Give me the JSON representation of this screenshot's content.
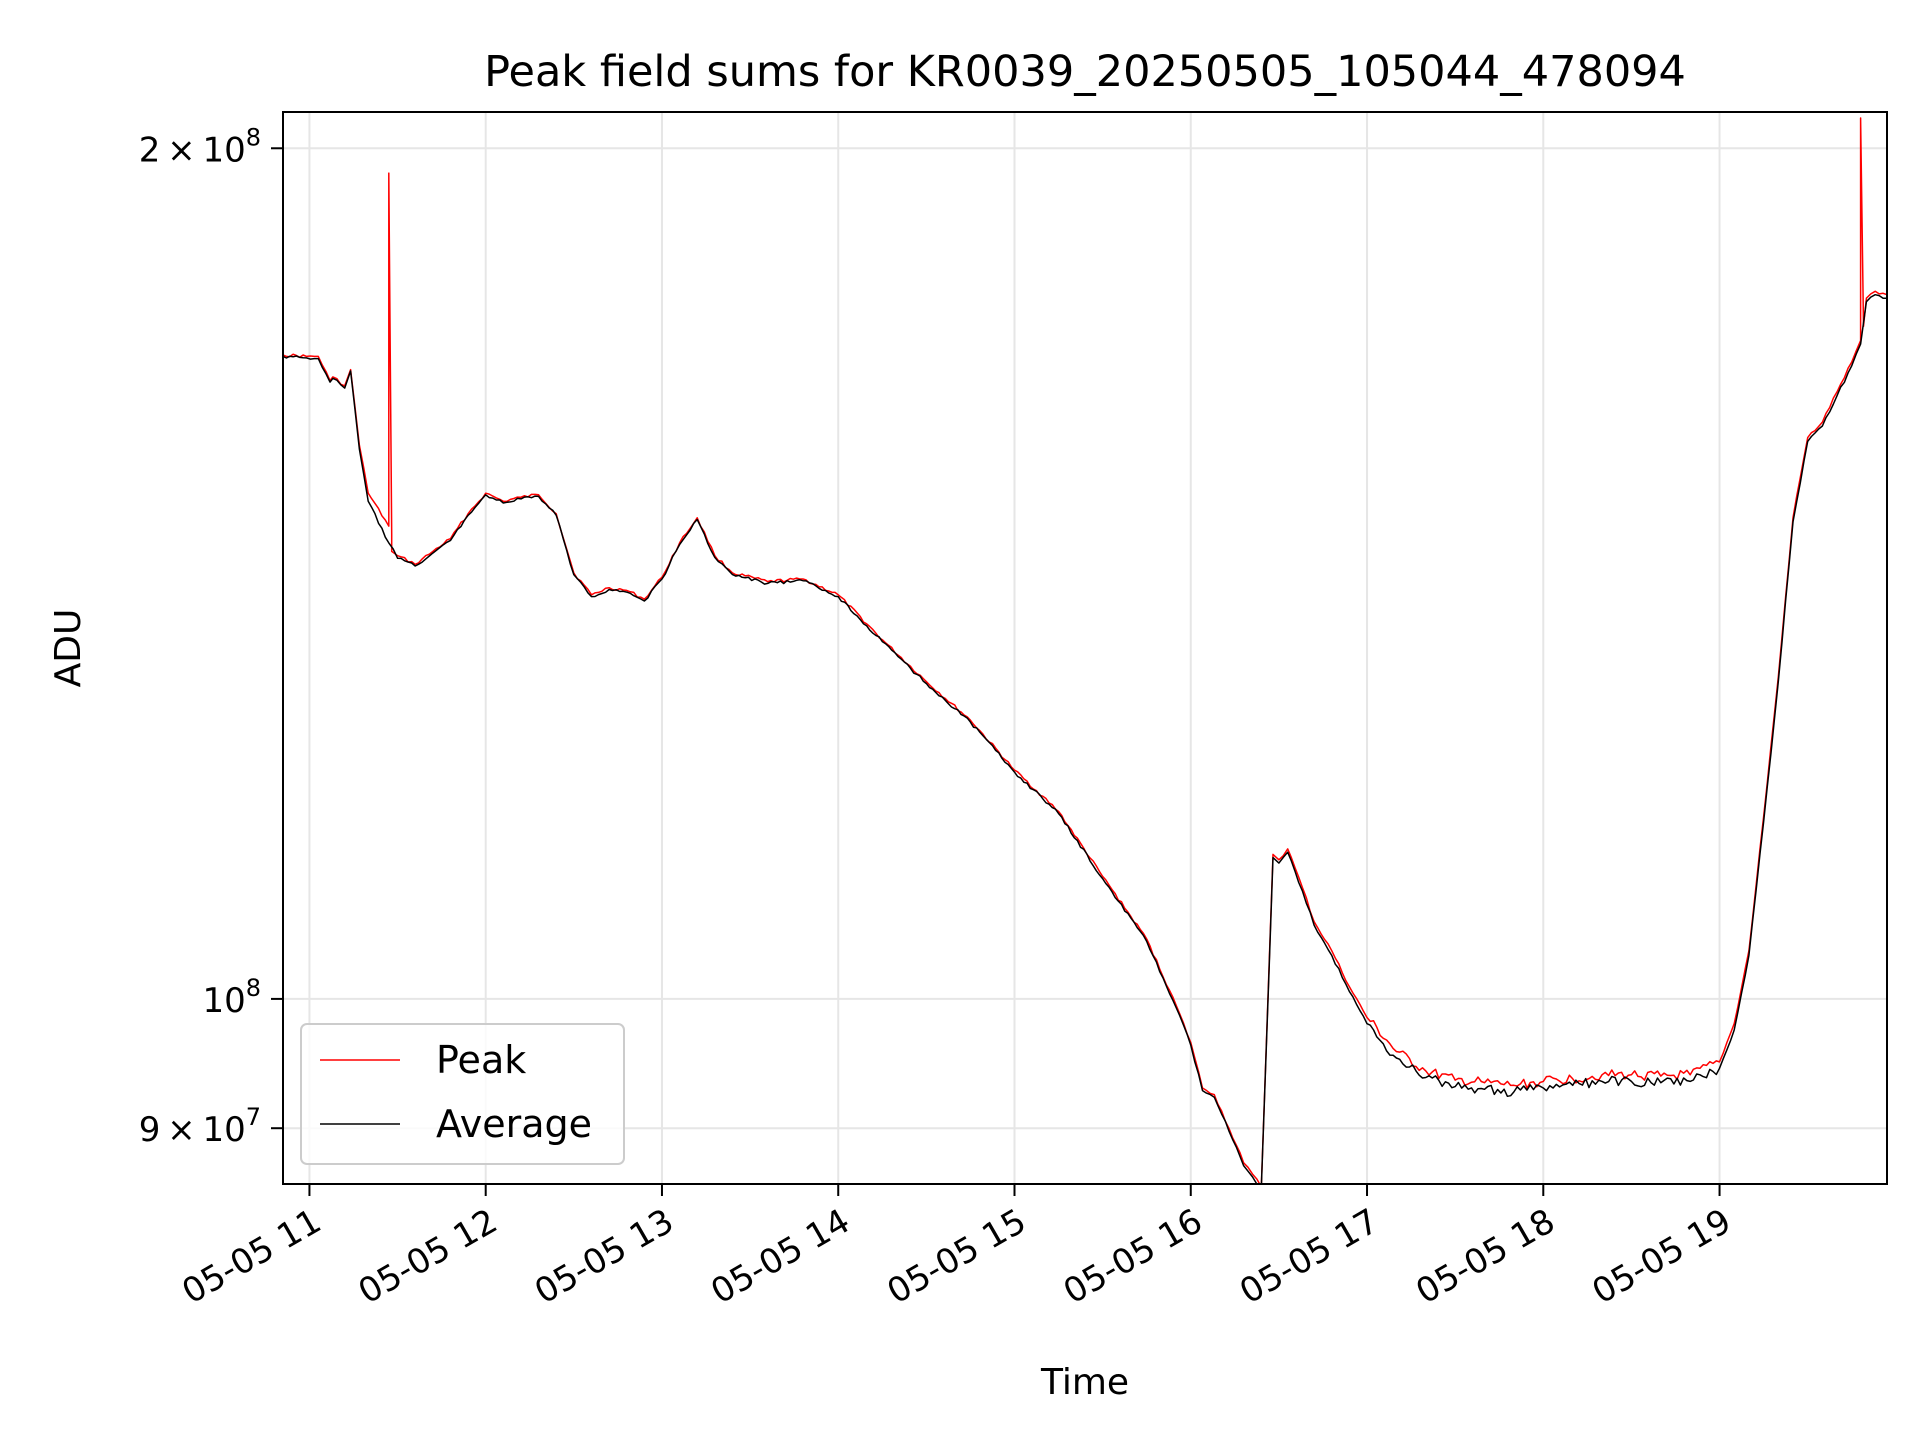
{
  "chart_data": {
    "type": "line",
    "title": "Peak field sums for KR0039_20250505_105044_478094",
    "xlabel": "Time",
    "ylabel": "ADU",
    "yscale": "log",
    "xlim": [
      "2025-05-05 10:51",
      "2025-05-05 19:57"
    ],
    "ylim": [
      86000000,
      206000000
    ],
    "grid": true,
    "legend_position": "lower-left",
    "x_ticks": [
      {
        "value": "2025-05-05 11:00",
        "label": "05-05 11"
      },
      {
        "value": "2025-05-05 12:00",
        "label": "05-05 12"
      },
      {
        "value": "2025-05-05 13:00",
        "label": "05-05 13"
      },
      {
        "value": "2025-05-05 14:00",
        "label": "05-05 14"
      },
      {
        "value": "2025-05-05 15:00",
        "label": "05-05 15"
      },
      {
        "value": "2025-05-05 16:00",
        "label": "05-05 16"
      },
      {
        "value": "2025-05-05 17:00",
        "label": "05-05 17"
      },
      {
        "value": "2025-05-05 18:00",
        "label": "05-05 18"
      },
      {
        "value": "2025-05-05 19:00",
        "label": "05-05 19"
      }
    ],
    "y_ticks": [
      {
        "value": 200000000,
        "mantissa": "2",
        "times": "×",
        "base": "10",
        "exp": "8"
      },
      {
        "value": 100000000,
        "mantissa": "",
        "times": "",
        "base": "10",
        "exp": "8"
      },
      {
        "value": 90000000,
        "mantissa": "9",
        "times": "×",
        "base": "10",
        "exp": "7"
      }
    ],
    "series": [
      {
        "name": "Peak",
        "color": "#ff0000",
        "x": [
          "2025-05-05 10:51",
          "2025-05-05 10:59",
          "2025-05-05 11:03",
          "2025-05-05 11:07",
          "2025-05-05 11:08",
          "2025-05-05 11:12",
          "2025-05-05 11:14",
          "2025-05-05 11:17",
          "2025-05-05 11:20",
          "2025-05-05 11:27",
          "2025-05-05 11:27",
          "2025-05-05 11:28",
          "2025-05-05 11:28",
          "2025-05-05 11:30",
          "2025-05-05 11:36",
          "2025-05-05 11:42",
          "2025-05-05 11:48",
          "2025-05-05 11:54",
          "2025-05-05 12:00",
          "2025-05-05 12:06",
          "2025-05-05 12:12",
          "2025-05-05 12:18",
          "2025-05-05 12:24",
          "2025-05-05 12:30",
          "2025-05-05 12:36",
          "2025-05-05 12:42",
          "2025-05-05 12:48",
          "2025-05-05 12:54",
          "2025-05-05 13:00",
          "2025-05-05 13:06",
          "2025-05-05 13:12",
          "2025-05-05 13:18",
          "2025-05-05 13:24",
          "2025-05-05 13:36",
          "2025-05-05 13:48",
          "2025-05-05 14:00",
          "2025-05-05 14:15",
          "2025-05-05 14:30",
          "2025-05-05 14:45",
          "2025-05-05 15:00",
          "2025-05-05 15:15",
          "2025-05-05 15:30",
          "2025-05-05 15:45",
          "2025-05-05 15:55",
          "2025-05-05 16:00",
          "2025-05-05 16:04",
          "2025-05-05 16:08",
          "2025-05-05 16:13",
          "2025-05-05 16:18",
          "2025-05-05 16:21",
          "2025-05-05 16:24",
          "2025-05-05 16:28",
          "2025-05-05 16:30",
          "2025-05-05 16:33",
          "2025-05-05 16:38",
          "2025-05-05 16:42",
          "2025-05-05 16:48",
          "2025-05-05 16:54",
          "2025-05-05 17:00",
          "2025-05-05 17:10",
          "2025-05-05 17:20",
          "2025-05-05 17:30",
          "2025-05-05 17:40",
          "2025-05-05 17:50",
          "2025-05-05 18:00",
          "2025-05-05 18:10",
          "2025-05-05 18:20",
          "2025-05-05 18:30",
          "2025-05-05 18:40",
          "2025-05-05 18:50",
          "2025-05-05 19:00",
          "2025-05-05 19:05",
          "2025-05-05 19:10",
          "2025-05-05 19:15",
          "2025-05-05 19:20",
          "2025-05-05 19:25",
          "2025-05-05 19:30",
          "2025-05-05 19:35",
          "2025-05-05 19:40",
          "2025-05-05 19:45",
          "2025-05-05 19:48",
          "2025-05-05 19:48",
          "2025-05-05 19:49",
          "2025-05-05 19:50",
          "2025-05-05 19:53",
          "2025-05-05 19:57"
        ],
        "y": [
          169000000,
          168800000,
          168800000,
          165500000,
          166000000,
          164800000,
          167000000,
          157000000,
          151000000,
          147000000,
          196000000,
          146000000,
          144000000,
          143500000,
          142500000,
          144000000,
          145500000,
          148500000,
          151000000,
          150000000,
          150500000,
          150800000,
          148500000,
          141500000,
          139000000,
          139800000,
          139500000,
          138500000,
          141000000,
          145000000,
          148000000,
          143500000,
          141500000,
          140500000,
          140800000,
          139000000,
          134000000,
          129500000,
          125500000,
          120500000,
          116500000,
          110500000,
          105000000,
          99500000,
          96500000,
          93000000,
          92500000,
          90000000,
          87500000,
          86700000,
          85800000,
          112500000,
          112000000,
          113000000,
          109500000,
          106500000,
          104000000,
          101000000,
          98500000,
          95800000,
          94300000,
          93600000,
          93400000,
          93200000,
          93500000,
          93700000,
          94000000,
          94000000,
          93900000,
          94000000,
          95000000,
          98000000,
          104000000,
          116000000,
          130000000,
          148000000,
          158000000,
          160000000,
          164000000,
          168000000,
          171000000,
          205000000,
          173000000,
          177000000,
          178000000,
          177500000
        ]
      },
      {
        "name": "Average",
        "color": "#000000",
        "x": [
          "2025-05-05 10:51",
          "2025-05-05 10:59",
          "2025-05-05 11:03",
          "2025-05-05 11:07",
          "2025-05-05 11:08",
          "2025-05-05 11:12",
          "2025-05-05 11:14",
          "2025-05-05 11:17",
          "2025-05-05 11:20",
          "2025-05-05 11:27",
          "2025-05-05 11:30",
          "2025-05-05 11:36",
          "2025-05-05 11:42",
          "2025-05-05 11:48",
          "2025-05-05 11:54",
          "2025-05-05 12:00",
          "2025-05-05 12:06",
          "2025-05-05 12:12",
          "2025-05-05 12:18",
          "2025-05-05 12:24",
          "2025-05-05 12:30",
          "2025-05-05 12:36",
          "2025-05-05 12:42",
          "2025-05-05 12:48",
          "2025-05-05 12:54",
          "2025-05-05 13:00",
          "2025-05-05 13:06",
          "2025-05-05 13:12",
          "2025-05-05 13:18",
          "2025-05-05 13:24",
          "2025-05-05 13:36",
          "2025-05-05 13:48",
          "2025-05-05 14:00",
          "2025-05-05 14:15",
          "2025-05-05 14:30",
          "2025-05-05 14:45",
          "2025-05-05 15:00",
          "2025-05-05 15:15",
          "2025-05-05 15:30",
          "2025-05-05 15:45",
          "2025-05-05 15:55",
          "2025-05-05 16:00",
          "2025-05-05 16:04",
          "2025-05-05 16:08",
          "2025-05-05 16:13",
          "2025-05-05 16:18",
          "2025-05-05 16:21",
          "2025-05-05 16:24",
          "2025-05-05 16:28",
          "2025-05-05 16:30",
          "2025-05-05 16:33",
          "2025-05-05 16:38",
          "2025-05-05 16:42",
          "2025-05-05 16:48",
          "2025-05-05 16:54",
          "2025-05-05 17:00",
          "2025-05-05 17:10",
          "2025-05-05 17:20",
          "2025-05-05 17:30",
          "2025-05-05 17:40",
          "2025-05-05 17:50",
          "2025-05-05 18:00",
          "2025-05-05 18:10",
          "2025-05-05 18:20",
          "2025-05-05 18:30",
          "2025-05-05 18:40",
          "2025-05-05 18:50",
          "2025-05-05 19:00",
          "2025-05-05 19:05",
          "2025-05-05 19:10",
          "2025-05-05 19:15",
          "2025-05-05 19:20",
          "2025-05-05 19:25",
          "2025-05-05 19:30",
          "2025-05-05 19:35",
          "2025-05-05 19:40",
          "2025-05-05 19:45",
          "2025-05-05 19:48",
          "2025-05-05 19:50",
          "2025-05-05 19:53",
          "2025-05-05 19:57"
        ],
        "y": [
          168800000,
          168600000,
          168500000,
          165300000,
          165800000,
          164500000,
          166800000,
          156500000,
          150000000,
          145000000,
          143200000,
          142300000,
          143800000,
          145300000,
          148300000,
          150800000,
          149800000,
          150300000,
          150600000,
          148300000,
          141300000,
          138800000,
          139600000,
          139300000,
          138300000,
          140800000,
          144800000,
          147800000,
          143300000,
          141300000,
          140300000,
          140600000,
          138800000,
          133800000,
          129300000,
          125300000,
          120300000,
          116300000,
          110300000,
          104800000,
          99300000,
          96300000,
          92800000,
          92300000,
          89800000,
          87300000,
          86500000,
          85700000,
          112200000,
          111700000,
          112700000,
          109200000,
          106200000,
          103600000,
          100600000,
          98000000,
          95300000,
          93800000,
          93100000,
          92900000,
          92700000,
          93000000,
          93200000,
          93500000,
          93500000,
          93400000,
          93500000,
          94500000,
          97500000,
          103600000,
          115500000,
          129500000,
          147500000,
          157500000,
          159500000,
          163500000,
          167500000,
          170500000,
          176500000,
          177500000,
          177000000
        ]
      }
    ]
  }
}
